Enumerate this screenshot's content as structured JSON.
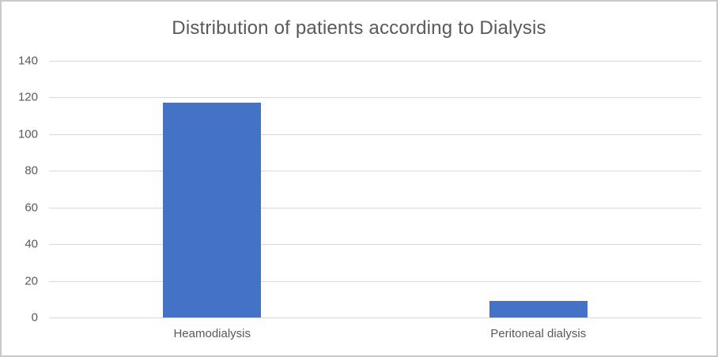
{
  "chart_data": {
    "type": "bar",
    "title": "Distribution of patients according to Dialysis",
    "categories": [
      "Heamodialysis",
      "Peritoneal dialysis"
    ],
    "values": [
      117,
      9
    ],
    "xlabel": "",
    "ylabel": "",
    "ylim": [
      0,
      140
    ],
    "yticks": [
      0,
      20,
      40,
      60,
      80,
      100,
      120,
      140
    ],
    "grid": true,
    "legend": false,
    "colors": {
      "bar_color": "#4472C4",
      "text_color": "#595959",
      "gridline_color": "#D9D9D9",
      "frame_color": "#C9C9C9",
      "background": "#FFFFFF"
    }
  }
}
